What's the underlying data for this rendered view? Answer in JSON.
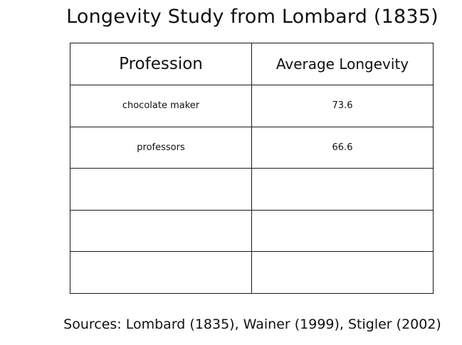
{
  "title": "Longevity Study from Lombard (1835)",
  "table": {
    "headers": [
      "Profession",
      "Average Longevity"
    ],
    "rows": [
      [
        "chocolate maker",
        "73.6"
      ],
      [
        "professors",
        "66.6"
      ],
      [
        "",
        ""
      ],
      [
        "",
        ""
      ],
      [
        "",
        ""
      ]
    ]
  },
  "sources": "Sources: Lombard (1835),  Wainer (1999), Stigler (2002)"
}
